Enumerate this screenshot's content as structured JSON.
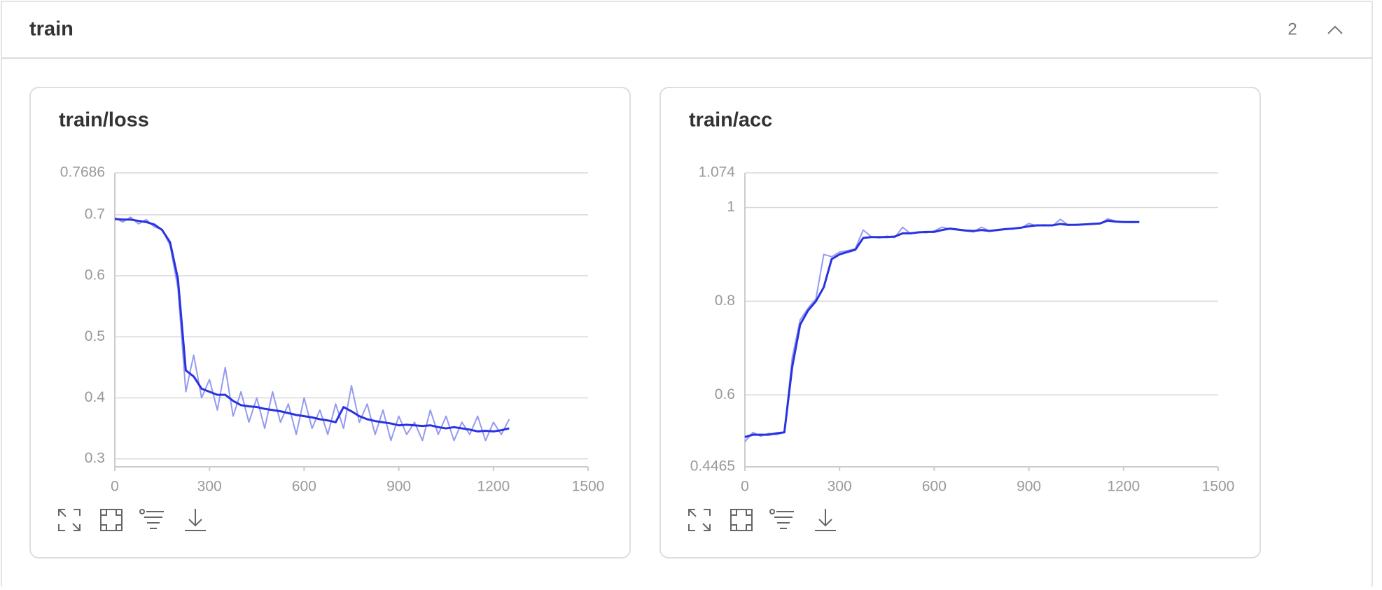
{
  "header": {
    "title": "train",
    "count": "2"
  },
  "chart_data": [
    {
      "type": "line",
      "title": "train/loss",
      "x": [
        0,
        25,
        50,
        75,
        100,
        125,
        150,
        175,
        200,
        225,
        250,
        275,
        300,
        325,
        350,
        375,
        400,
        425,
        450,
        475,
        500,
        525,
        550,
        575,
        600,
        625,
        650,
        675,
        700,
        725,
        750,
        775,
        800,
        825,
        850,
        875,
        900,
        925,
        950,
        975,
        1000,
        1025,
        1050,
        1075,
        1100,
        1125,
        1150,
        1175,
        1200,
        1225,
        1250
      ],
      "series": [
        {
          "color": "#959af0",
          "values": [
            0.695,
            0.688,
            0.696,
            0.685,
            0.692,
            0.68,
            0.676,
            0.65,
            0.58,
            0.41,
            0.47,
            0.4,
            0.43,
            0.38,
            0.45,
            0.37,
            0.41,
            0.36,
            0.4,
            0.35,
            0.41,
            0.36,
            0.39,
            0.34,
            0.4,
            0.35,
            0.38,
            0.34,
            0.39,
            0.35,
            0.42,
            0.36,
            0.39,
            0.34,
            0.38,
            0.33,
            0.37,
            0.34,
            0.36,
            0.33,
            0.38,
            0.34,
            0.37,
            0.33,
            0.36,
            0.34,
            0.37,
            0.33,
            0.36,
            0.34,
            0.365
          ]
        },
        {
          "color": "#2932e1",
          "values": [
            0.693,
            0.692,
            0.692,
            0.69,
            0.688,
            0.684,
            0.675,
            0.655,
            0.595,
            0.445,
            0.435,
            0.415,
            0.41,
            0.405,
            0.405,
            0.395,
            0.388,
            0.386,
            0.385,
            0.382,
            0.38,
            0.378,
            0.375,
            0.372,
            0.37,
            0.368,
            0.365,
            0.363,
            0.36,
            0.385,
            0.378,
            0.37,
            0.365,
            0.362,
            0.36,
            0.358,
            0.355,
            0.356,
            0.355,
            0.354,
            0.355,
            0.352,
            0.35,
            0.352,
            0.35,
            0.348,
            0.345,
            0.346,
            0.345,
            0.347,
            0.35
          ]
        }
      ],
      "xlim": [
        0,
        1500
      ],
      "xticks": [
        0,
        300,
        600,
        900,
        1200,
        1500
      ],
      "ylim": [
        0.287,
        0.7686
      ],
      "yticks": [
        0.3,
        0.4,
        0.5,
        0.6,
        0.7,
        0.7686
      ],
      "grid": true
    },
    {
      "type": "line",
      "title": "train/acc",
      "x": [
        0,
        25,
        50,
        75,
        100,
        125,
        150,
        175,
        200,
        225,
        250,
        275,
        300,
        325,
        350,
        375,
        400,
        425,
        450,
        475,
        500,
        525,
        550,
        575,
        600,
        625,
        650,
        675,
        700,
        725,
        750,
        775,
        800,
        825,
        850,
        875,
        900,
        925,
        950,
        975,
        1000,
        1025,
        1050,
        1075,
        1100,
        1125,
        1150,
        1175,
        1200,
        1225,
        1250
      ],
      "series": [
        {
          "color": "#959af0",
          "values": [
            0.5,
            0.52,
            0.512,
            0.518,
            0.515,
            0.52,
            0.68,
            0.76,
            0.785,
            0.805,
            0.9,
            0.895,
            0.905,
            0.908,
            0.912,
            0.952,
            0.938,
            0.935,
            0.939,
            0.936,
            0.958,
            0.944,
            0.948,
            0.946,
            0.95,
            0.958,
            0.954,
            0.952,
            0.95,
            0.948,
            0.958,
            0.95,
            0.951,
            0.953,
            0.955,
            0.956,
            0.966,
            0.961,
            0.963,
            0.961,
            0.975,
            0.962,
            0.964,
            0.963,
            0.966,
            0.965,
            0.976,
            0.971,
            0.969,
            0.968,
            0.969
          ]
        },
        {
          "color": "#2932e1",
          "values": [
            0.51,
            0.515,
            0.515,
            0.515,
            0.518,
            0.52,
            0.66,
            0.75,
            0.78,
            0.8,
            0.83,
            0.89,
            0.9,
            0.905,
            0.91,
            0.935,
            0.937,
            0.937,
            0.937,
            0.938,
            0.945,
            0.945,
            0.947,
            0.948,
            0.948,
            0.952,
            0.955,
            0.953,
            0.951,
            0.95,
            0.952,
            0.95,
            0.952,
            0.954,
            0.955,
            0.957,
            0.96,
            0.962,
            0.962,
            0.962,
            0.965,
            0.963,
            0.963,
            0.964,
            0.965,
            0.966,
            0.972,
            0.97,
            0.969,
            0.969,
            0.969
          ]
        }
      ],
      "xlim": [
        0,
        1500
      ],
      "xticks": [
        0,
        300,
        600,
        900,
        1200,
        1500
      ],
      "ylim": [
        0.4465,
        1.074
      ],
      "yticks": [
        0.4465,
        0.6,
        0.8,
        1,
        1.074
      ],
      "grid": true
    }
  ]
}
